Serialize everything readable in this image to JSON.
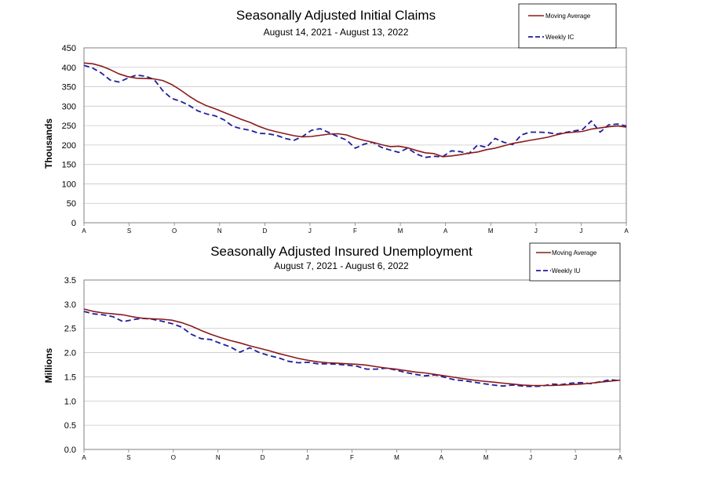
{
  "chart_data": [
    {
      "type": "line",
      "title": "Seasonally Adjusted Initial Claims",
      "subtitle": "August 14, 2021 - August 13, 2022",
      "ylabel": "Thousands",
      "ylim": [
        0,
        450
      ],
      "yticks": [
        "0",
        "50",
        "100",
        "150",
        "200",
        "250",
        "300",
        "350",
        "400",
        "450"
      ],
      "xticks": [
        "A",
        "S",
        "O",
        "N",
        "D",
        "J",
        "F",
        "M",
        "A",
        "M",
        "J",
        "J",
        "A"
      ],
      "grid": true,
      "legend_position": "top-right",
      "series": [
        {
          "name": "Moving Average",
          "color": "#8b1a1a",
          "style": "solid",
          "values": [
            411,
            409,
            403,
            394,
            383,
            376,
            372,
            371,
            370,
            366,
            356,
            342,
            326,
            312,
            301,
            293,
            284,
            275,
            266,
            258,
            248,
            240,
            234,
            229,
            224,
            221,
            222,
            225,
            228,
            229,
            226,
            218,
            212,
            207,
            201,
            196,
            197,
            193,
            186,
            180,
            178,
            170,
            172,
            175,
            179,
            182,
            188,
            192,
            198,
            204,
            208,
            212,
            216,
            220,
            226,
            231,
            233,
            235,
            241,
            244,
            247,
            249,
            246
          ]
        },
        {
          "name": "Weekly IC",
          "color": "#1f1f9e",
          "style": "dashed",
          "values": [
            405,
            398,
            385,
            367,
            362,
            372,
            380,
            377,
            369,
            340,
            320,
            313,
            302,
            288,
            280,
            275,
            265,
            248,
            242,
            238,
            230,
            229,
            225,
            217,
            212,
            222,
            238,
            242,
            232,
            222,
            213,
            192,
            202,
            207,
            194,
            187,
            181,
            192,
            177,
            168,
            171,
            170,
            185,
            183,
            178,
            200,
            194,
            217,
            207,
            201,
            226,
            233,
            233,
            232,
            228,
            232,
            236,
            240,
            262,
            233,
            252,
            254,
            249
          ]
        }
      ]
    },
    {
      "type": "line",
      "title": "Seasonally Adjusted Insured Unemployment",
      "subtitle": "August 7, 2021 - August 6, 2022",
      "ylabel": "Millions",
      "ylim": [
        0,
        3.5
      ],
      "yticks": [
        "0.0",
        "0.5",
        "1.0",
        "1.5",
        "2.0",
        "2.5",
        "3.0",
        "3.5"
      ],
      "xticks": [
        "A",
        "S",
        "O",
        "N",
        "D",
        "J",
        "F",
        "M",
        "A",
        "M",
        "J",
        "J",
        "A"
      ],
      "grid": true,
      "legend_position": "top-right",
      "series": [
        {
          "name": "Moving Average",
          "color": "#8b1a1a",
          "style": "solid",
          "values": [
            2.9,
            2.85,
            2.82,
            2.8,
            2.78,
            2.74,
            2.71,
            2.7,
            2.69,
            2.67,
            2.62,
            2.55,
            2.46,
            2.38,
            2.31,
            2.25,
            2.2,
            2.14,
            2.09,
            2.04,
            1.98,
            1.93,
            1.88,
            1.84,
            1.81,
            1.79,
            1.78,
            1.77,
            1.76,
            1.74,
            1.71,
            1.68,
            1.66,
            1.63,
            1.6,
            1.58,
            1.55,
            1.52,
            1.49,
            1.46,
            1.43,
            1.41,
            1.39,
            1.37,
            1.35,
            1.33,
            1.32,
            1.32,
            1.32,
            1.33,
            1.34,
            1.35,
            1.37,
            1.39,
            1.41,
            1.43
          ]
        },
        {
          "name": "Weekly IU",
          "color": "#1f1f9e",
          "style": "dashed",
          "values": [
            2.85,
            2.8,
            2.78,
            2.74,
            2.64,
            2.68,
            2.71,
            2.69,
            2.65,
            2.6,
            2.53,
            2.38,
            2.29,
            2.27,
            2.19,
            2.12,
            2.01,
            2.1,
            2.0,
            1.94,
            1.89,
            1.82,
            1.79,
            1.8,
            1.77,
            1.77,
            1.76,
            1.74,
            1.72,
            1.66,
            1.66,
            1.68,
            1.64,
            1.59,
            1.55,
            1.52,
            1.54,
            1.49,
            1.44,
            1.42,
            1.39,
            1.36,
            1.33,
            1.31,
            1.33,
            1.31,
            1.3,
            1.31,
            1.35,
            1.34,
            1.37,
            1.38,
            1.36,
            1.4,
            1.44,
            1.42
          ]
        }
      ]
    }
  ]
}
